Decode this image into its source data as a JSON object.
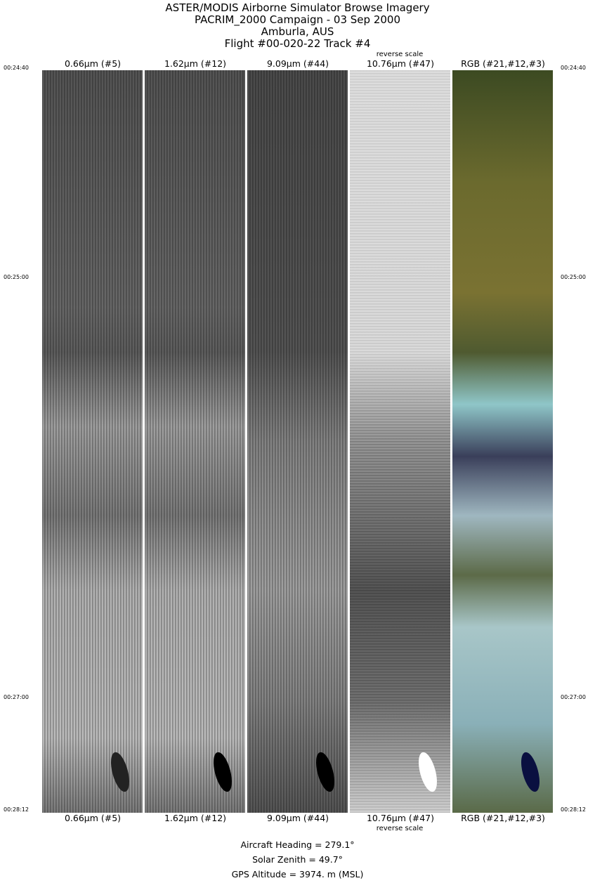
{
  "title": {
    "line1": "ASTER/MODIS Airborne Simulator Browse Imagery",
    "line2": "PACRIM_2000 Campaign - 03 Sep 2000",
    "line3": "Amburla, AUS",
    "line4": "Flight #00-020-22 Track #4"
  },
  "panels": [
    {
      "label": "0.66µm (#5)",
      "note": ""
    },
    {
      "label": "1.62µm (#12)",
      "note": ""
    },
    {
      "label": "9.09µm (#44)",
      "note": ""
    },
    {
      "label": "10.76µm (#47)",
      "note": "reverse scale"
    },
    {
      "label": "RGB (#21,#12,#3)",
      "note": ""
    }
  ],
  "times": [
    "00:24:40",
    "00:25:00",
    "00:27:00",
    "00:28:12"
  ],
  "info": {
    "heading": "Aircraft Heading =  279.1°",
    "zenith": "Solar Zenith =   49.7°",
    "altitude": "GPS Altitude =   3974. m (MSL)"
  }
}
